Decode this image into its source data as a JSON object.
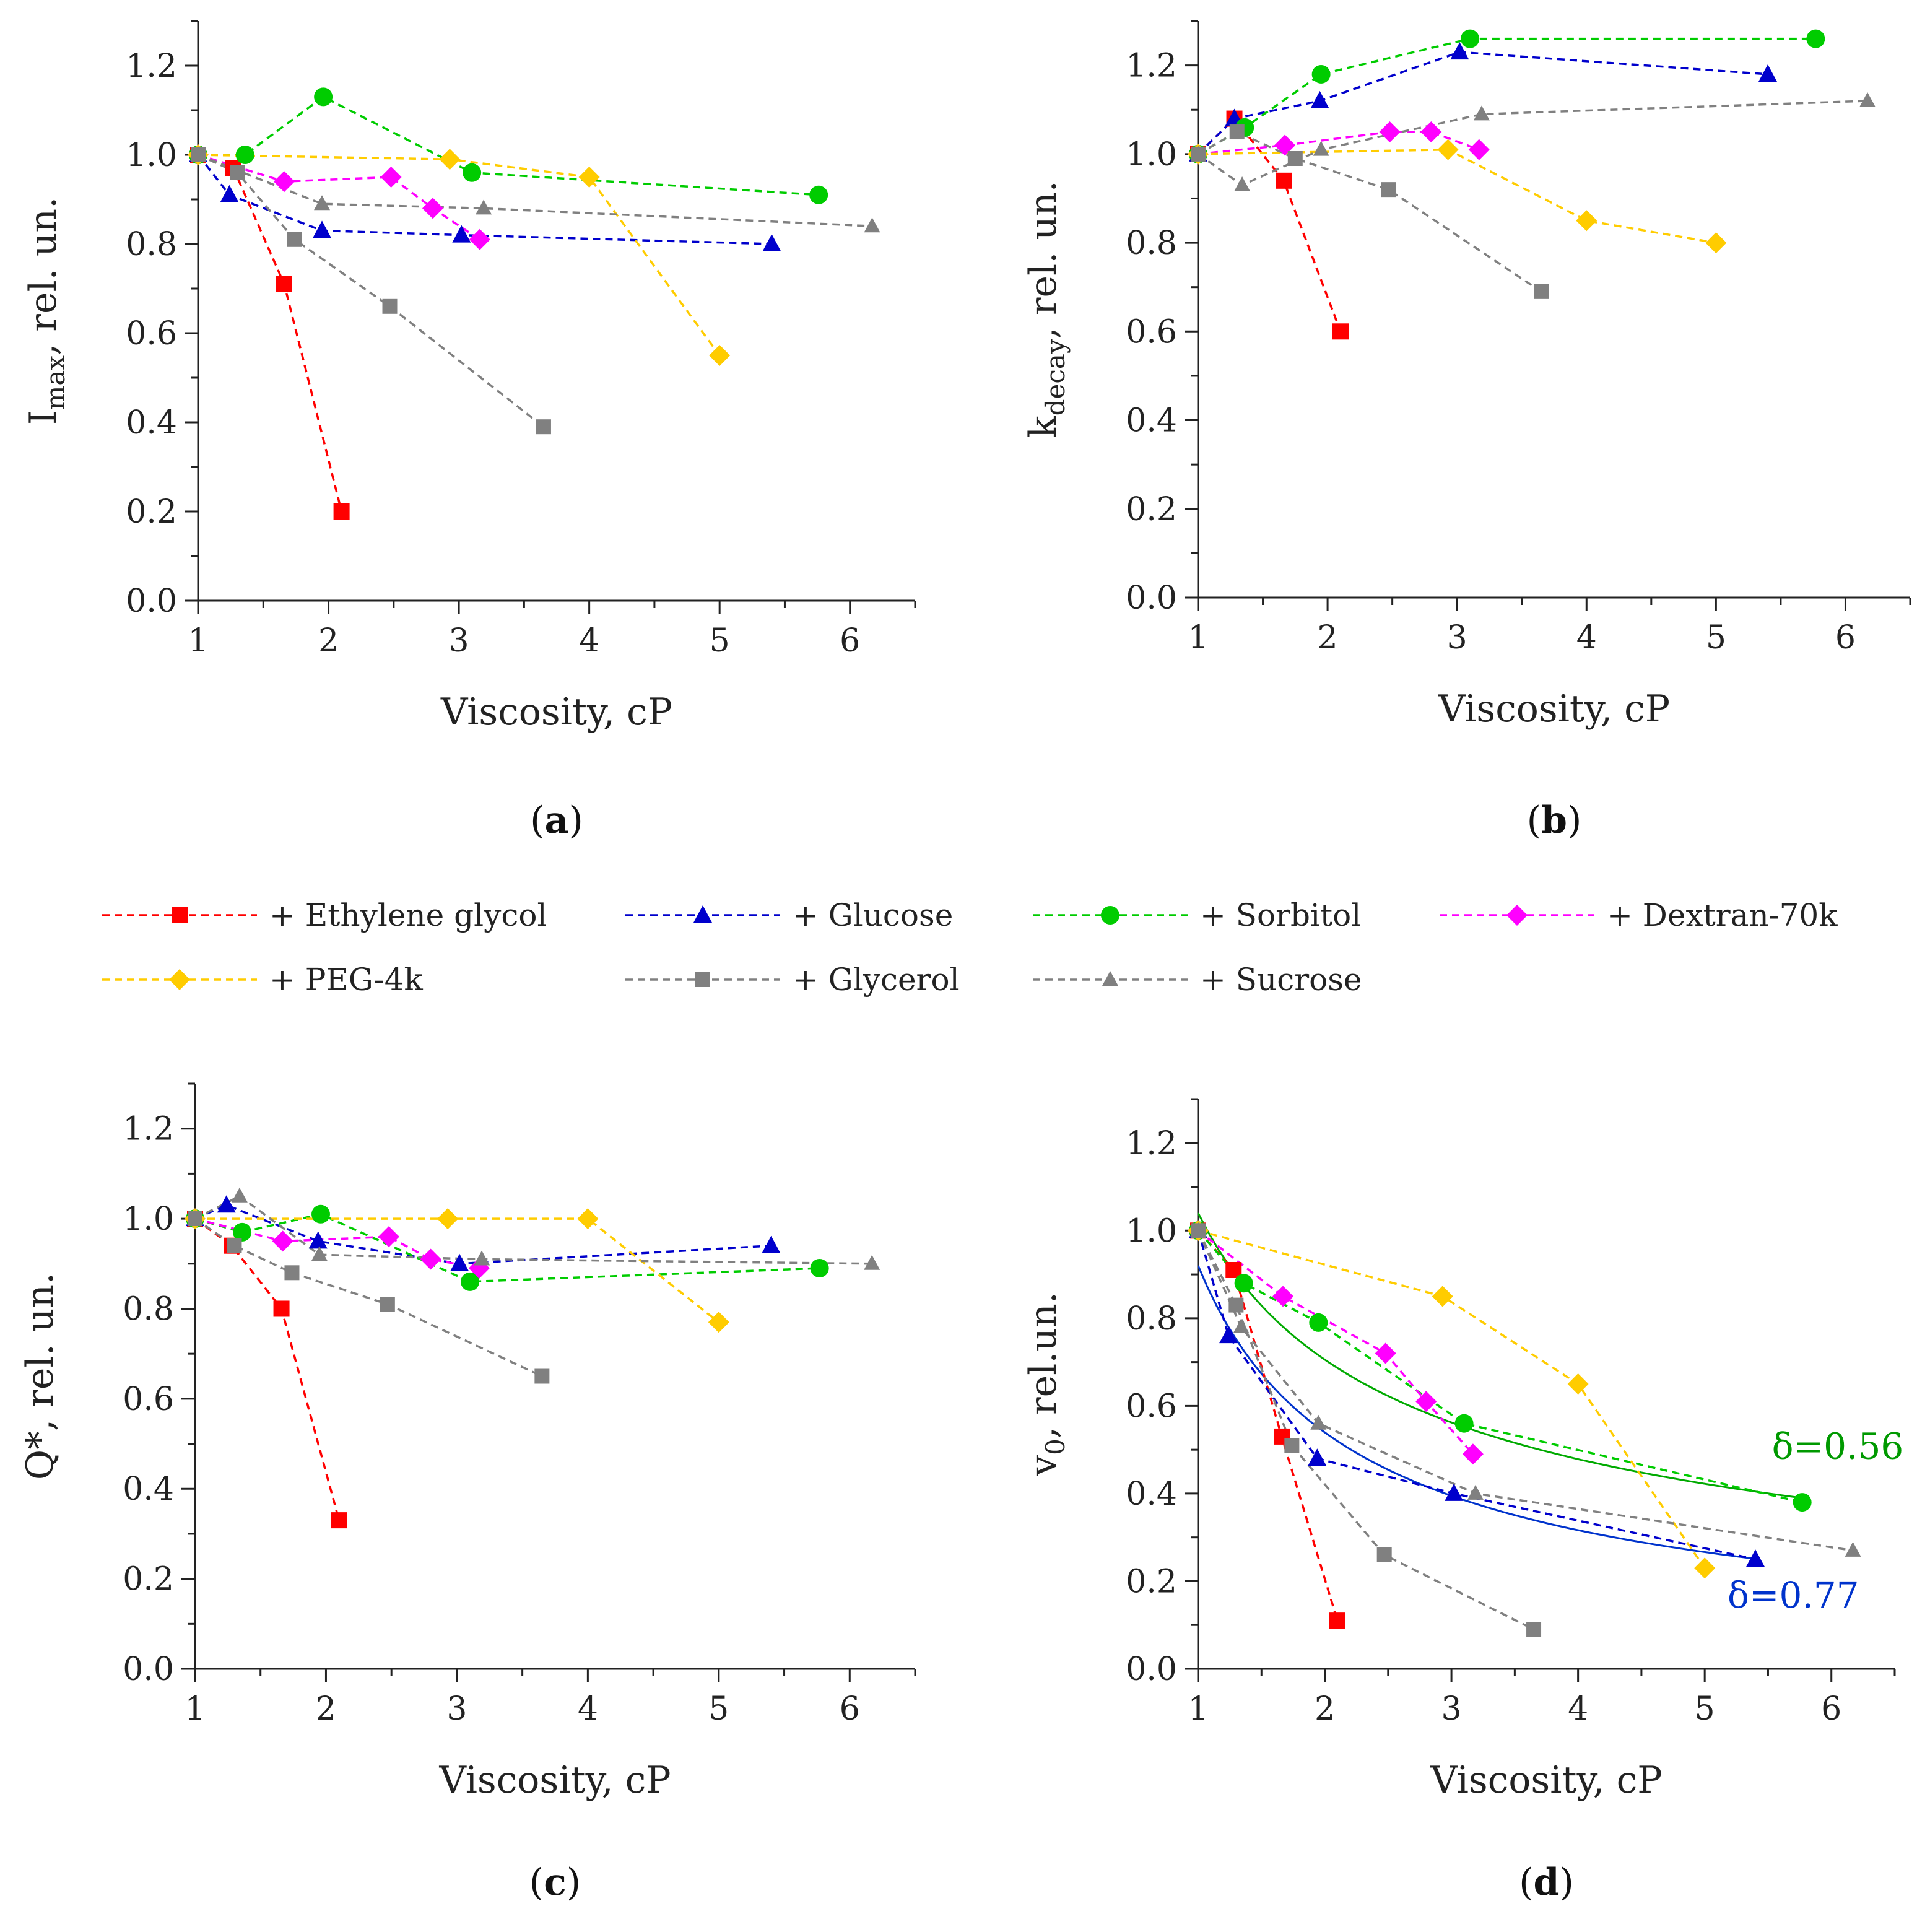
{
  "legend": [
    {
      "name": "+ Ethylene glycol",
      "color": "#ff0000",
      "marker": "square-large"
    },
    {
      "name": "+ Glucose",
      "color": "#0000cc",
      "marker": "triangle"
    },
    {
      "name": "+ Sorbitol",
      "color": "#00cc00",
      "marker": "circle"
    },
    {
      "name": "+ Dextran-70k",
      "color": "#ff00ff",
      "marker": "diamond"
    },
    {
      "name": "+ PEG-4k",
      "color": "#ffcc00",
      "marker": "diamond"
    },
    {
      "name": "+ Glycerol",
      "color": "#808080",
      "marker": "square"
    },
    {
      "name": "+ Sucrose",
      "color": "#808080",
      "marker": "triangle-small"
    }
  ],
  "chart_data": [
    {
      "type": "line",
      "panel": "(a)",
      "panel_letter": "a",
      "xlabel": "Viscosity, cP",
      "ylabel_main": "I",
      "ylabel_sub": "max",
      "ylabel_rest": ", rel. un.",
      "xlim": [
        1,
        6.5
      ],
      "ylim": [
        0,
        1.3
      ],
      "xticks": [
        1,
        2,
        3,
        4,
        5,
        6
      ],
      "yticks": [
        "0.0",
        "0.2",
        "0.4",
        "0.6",
        "0.8",
        "1.0",
        "1.2"
      ],
      "series": [
        {
          "name": "+ Ethylene glycol",
          "x": [
            1,
            1.27,
            1.66,
            2.1
          ],
          "y": [
            1.0,
            0.97,
            0.71,
            0.2
          ]
        },
        {
          "name": "+ Glucose",
          "x": [
            1,
            1.24,
            1.95,
            3.02,
            5.4
          ],
          "y": [
            1.0,
            0.91,
            0.83,
            0.82,
            0.8
          ]
        },
        {
          "name": "+ Sorbitol",
          "x": [
            1,
            1.36,
            1.96,
            3.1,
            5.76
          ],
          "y": [
            1.0,
            1.0,
            1.13,
            0.96,
            0.91
          ]
        },
        {
          "name": "+ Dextran-70k",
          "x": [
            1,
            1.66,
            2.48,
            2.8,
            3.16
          ],
          "y": [
            1.0,
            0.94,
            0.95,
            0.88,
            0.81
          ]
        },
        {
          "name": "+ PEG-4k",
          "x": [
            1,
            2.93,
            4.0,
            5.0
          ],
          "y": [
            1.0,
            0.99,
            0.95,
            0.55
          ]
        },
        {
          "name": "+ Glycerol",
          "x": [
            1,
            1.3,
            1.74,
            2.47,
            3.65
          ],
          "y": [
            1.0,
            0.96,
            0.81,
            0.66,
            0.39
          ]
        },
        {
          "name": "+ Sucrose",
          "x": [
            1,
            1.95,
            3.19,
            6.17
          ],
          "y": [
            1.0,
            0.89,
            0.88,
            0.84
          ]
        }
      ],
      "fits": [],
      "annotations": []
    },
    {
      "type": "line",
      "panel": "(b)",
      "panel_letter": "b",
      "xlabel": "Viscosity, cP",
      "ylabel_main": "k",
      "ylabel_sub": "decay",
      "ylabel_rest": ", rel. un.",
      "xlim": [
        1,
        6.5
      ],
      "ylim": [
        0,
        1.3
      ],
      "xticks": [
        1,
        2,
        3,
        4,
        5,
        6
      ],
      "yticks": [
        "0.0",
        "0.2",
        "0.4",
        "0.6",
        "0.8",
        "1.0",
        "1.2"
      ],
      "series": [
        {
          "name": "+ Ethylene glycol",
          "x": [
            1,
            1.28,
            1.66,
            2.1
          ],
          "y": [
            1.0,
            1.08,
            0.94,
            0.6
          ]
        },
        {
          "name": "+ Glucose",
          "x": [
            1,
            1.28,
            1.94,
            3.02,
            5.4
          ],
          "y": [
            1.0,
            1.08,
            1.12,
            1.23,
            1.18
          ]
        },
        {
          "name": "+ Sorbitol",
          "x": [
            1,
            1.36,
            1.95,
            3.1,
            5.77
          ],
          "y": [
            1.0,
            1.06,
            1.18,
            1.26,
            1.26
          ]
        },
        {
          "name": "+ Dextran-70k",
          "x": [
            1,
            1.67,
            2.48,
            2.8,
            3.17
          ],
          "y": [
            1.0,
            1.02,
            1.05,
            1.05,
            1.01
          ]
        },
        {
          "name": "+ PEG-4k",
          "x": [
            1,
            2.93,
            4.0,
            5.0
          ],
          "y": [
            1.0,
            1.01,
            0.85,
            0.8
          ]
        },
        {
          "name": "+ Glycerol",
          "x": [
            1,
            1.3,
            1.75,
            2.47,
            3.65
          ],
          "y": [
            1.0,
            1.05,
            0.99,
            0.92,
            0.69
          ]
        },
        {
          "name": "+ Sucrose",
          "x": [
            1,
            1.34,
            1.95,
            3.19,
            6.17
          ],
          "y": [
            1.0,
            0.93,
            1.01,
            1.09,
            1.12
          ]
        }
      ],
      "fits": [],
      "annotations": []
    },
    {
      "type": "line",
      "panel": "(c)",
      "panel_letter": "c",
      "xlabel": "Viscosity, cP",
      "ylabel_main": "Q*",
      "ylabel_sub": "",
      "ylabel_rest": ", rel. un.",
      "xlim": [
        1,
        6.5
      ],
      "ylim": [
        0,
        1.3
      ],
      "xticks": [
        1,
        2,
        3,
        4,
        5,
        6
      ],
      "yticks": [
        "0.0",
        "0.2",
        "0.4",
        "0.6",
        "0.8",
        "1.0",
        "1.2"
      ],
      "series": [
        {
          "name": "+ Ethylene glycol",
          "x": [
            1,
            1.28,
            1.66,
            2.1
          ],
          "y": [
            1.0,
            0.94,
            0.8,
            0.33
          ]
        },
        {
          "name": "+ Glucose",
          "x": [
            1,
            1.24,
            1.94,
            3.02,
            5.4
          ],
          "y": [
            1.0,
            1.03,
            0.95,
            0.9,
            0.94
          ]
        },
        {
          "name": "+ Sorbitol",
          "x": [
            1,
            1.36,
            1.96,
            3.1,
            5.77
          ],
          "y": [
            1.0,
            0.97,
            1.01,
            0.86,
            0.89
          ]
        },
        {
          "name": "+ Dextran-70k",
          "x": [
            1,
            1.67,
            2.48,
            2.8,
            3.17
          ],
          "y": [
            1.0,
            0.95,
            0.96,
            0.91,
            0.89
          ]
        },
        {
          "name": "+ PEG-4k",
          "x": [
            1,
            2.93,
            4.0,
            5.0
          ],
          "y": [
            1.0,
            1.0,
            1.0,
            0.77
          ]
        },
        {
          "name": "+ Glycerol",
          "x": [
            1,
            1.3,
            1.74,
            2.47,
            3.65
          ],
          "y": [
            1.0,
            0.94,
            0.88,
            0.81,
            0.65
          ]
        },
        {
          "name": "+ Sucrose",
          "x": [
            1,
            1.34,
            1.95,
            3.19,
            6.17
          ],
          "y": [
            1.0,
            1.05,
            0.92,
            0.91,
            0.9
          ]
        }
      ],
      "fits": [],
      "annotations": []
    },
    {
      "type": "line",
      "panel": "(d)",
      "panel_letter": "d",
      "xlabel": "Viscosity, cP",
      "ylabel_main": "v",
      "ylabel_sub": "0",
      "ylabel_rest": ", rel.un.",
      "xlim": [
        1,
        6.5
      ],
      "ylim": [
        0,
        1.3
      ],
      "xticks": [
        1,
        2,
        3,
        4,
        5,
        6
      ],
      "yticks": [
        "0.0",
        "0.2",
        "0.4",
        "0.6",
        "0.8",
        "1.0",
        "1.2"
      ],
      "series": [
        {
          "name": "+ Ethylene glycol",
          "x": [
            1,
            1.28,
            1.66,
            2.1
          ],
          "y": [
            1.0,
            0.91,
            0.53,
            0.11
          ]
        },
        {
          "name": "+ Glucose",
          "x": [
            1,
            1.24,
            1.94,
            3.02,
            5.4
          ],
          "y": [
            1.0,
            0.76,
            0.48,
            0.4,
            0.25
          ]
        },
        {
          "name": "+ Sorbitol",
          "x": [
            1,
            1.36,
            1.95,
            3.1,
            5.77
          ],
          "y": [
            1.0,
            0.88,
            0.79,
            0.56,
            0.38
          ]
        },
        {
          "name": "+ Dextran-70k",
          "x": [
            1,
            1.67,
            2.48,
            2.8,
            3.17
          ],
          "y": [
            1.0,
            0.85,
            0.72,
            0.61,
            0.49
          ]
        },
        {
          "name": "+ PEG-4k",
          "x": [
            1,
            2.93,
            4.0,
            5.0
          ],
          "y": [
            1.0,
            0.85,
            0.65,
            0.23
          ]
        },
        {
          "name": "+ Glycerol",
          "x": [
            1,
            1.3,
            1.74,
            2.47,
            3.65
          ],
          "y": [
            1.0,
            0.83,
            0.51,
            0.26,
            0.09
          ]
        },
        {
          "name": "+ Sucrose",
          "x": [
            1,
            1.34,
            1.95,
            3.19,
            6.17
          ],
          "y": [
            1.0,
            0.78,
            0.56,
            0.4,
            0.27
          ]
        }
      ],
      "fits": [
        {
          "name": "Sorbitol fit",
          "color": "#00aa00",
          "delta": 0.56,
          "a": 1.04,
          "xrange": [
            1,
            5.77
          ]
        },
        {
          "name": "Glucose fit",
          "color": "#0033cc",
          "delta": 0.77,
          "a": 0.92,
          "xrange": [
            1,
            5.4
          ]
        }
      ],
      "annotations": [
        {
          "text": "δ=0.56",
          "color": "#009900",
          "x": 6.05,
          "y": 0.48
        },
        {
          "text": "δ=0.77",
          "color": "#0033cc",
          "x": 5.7,
          "y": 0.14
        }
      ]
    }
  ]
}
